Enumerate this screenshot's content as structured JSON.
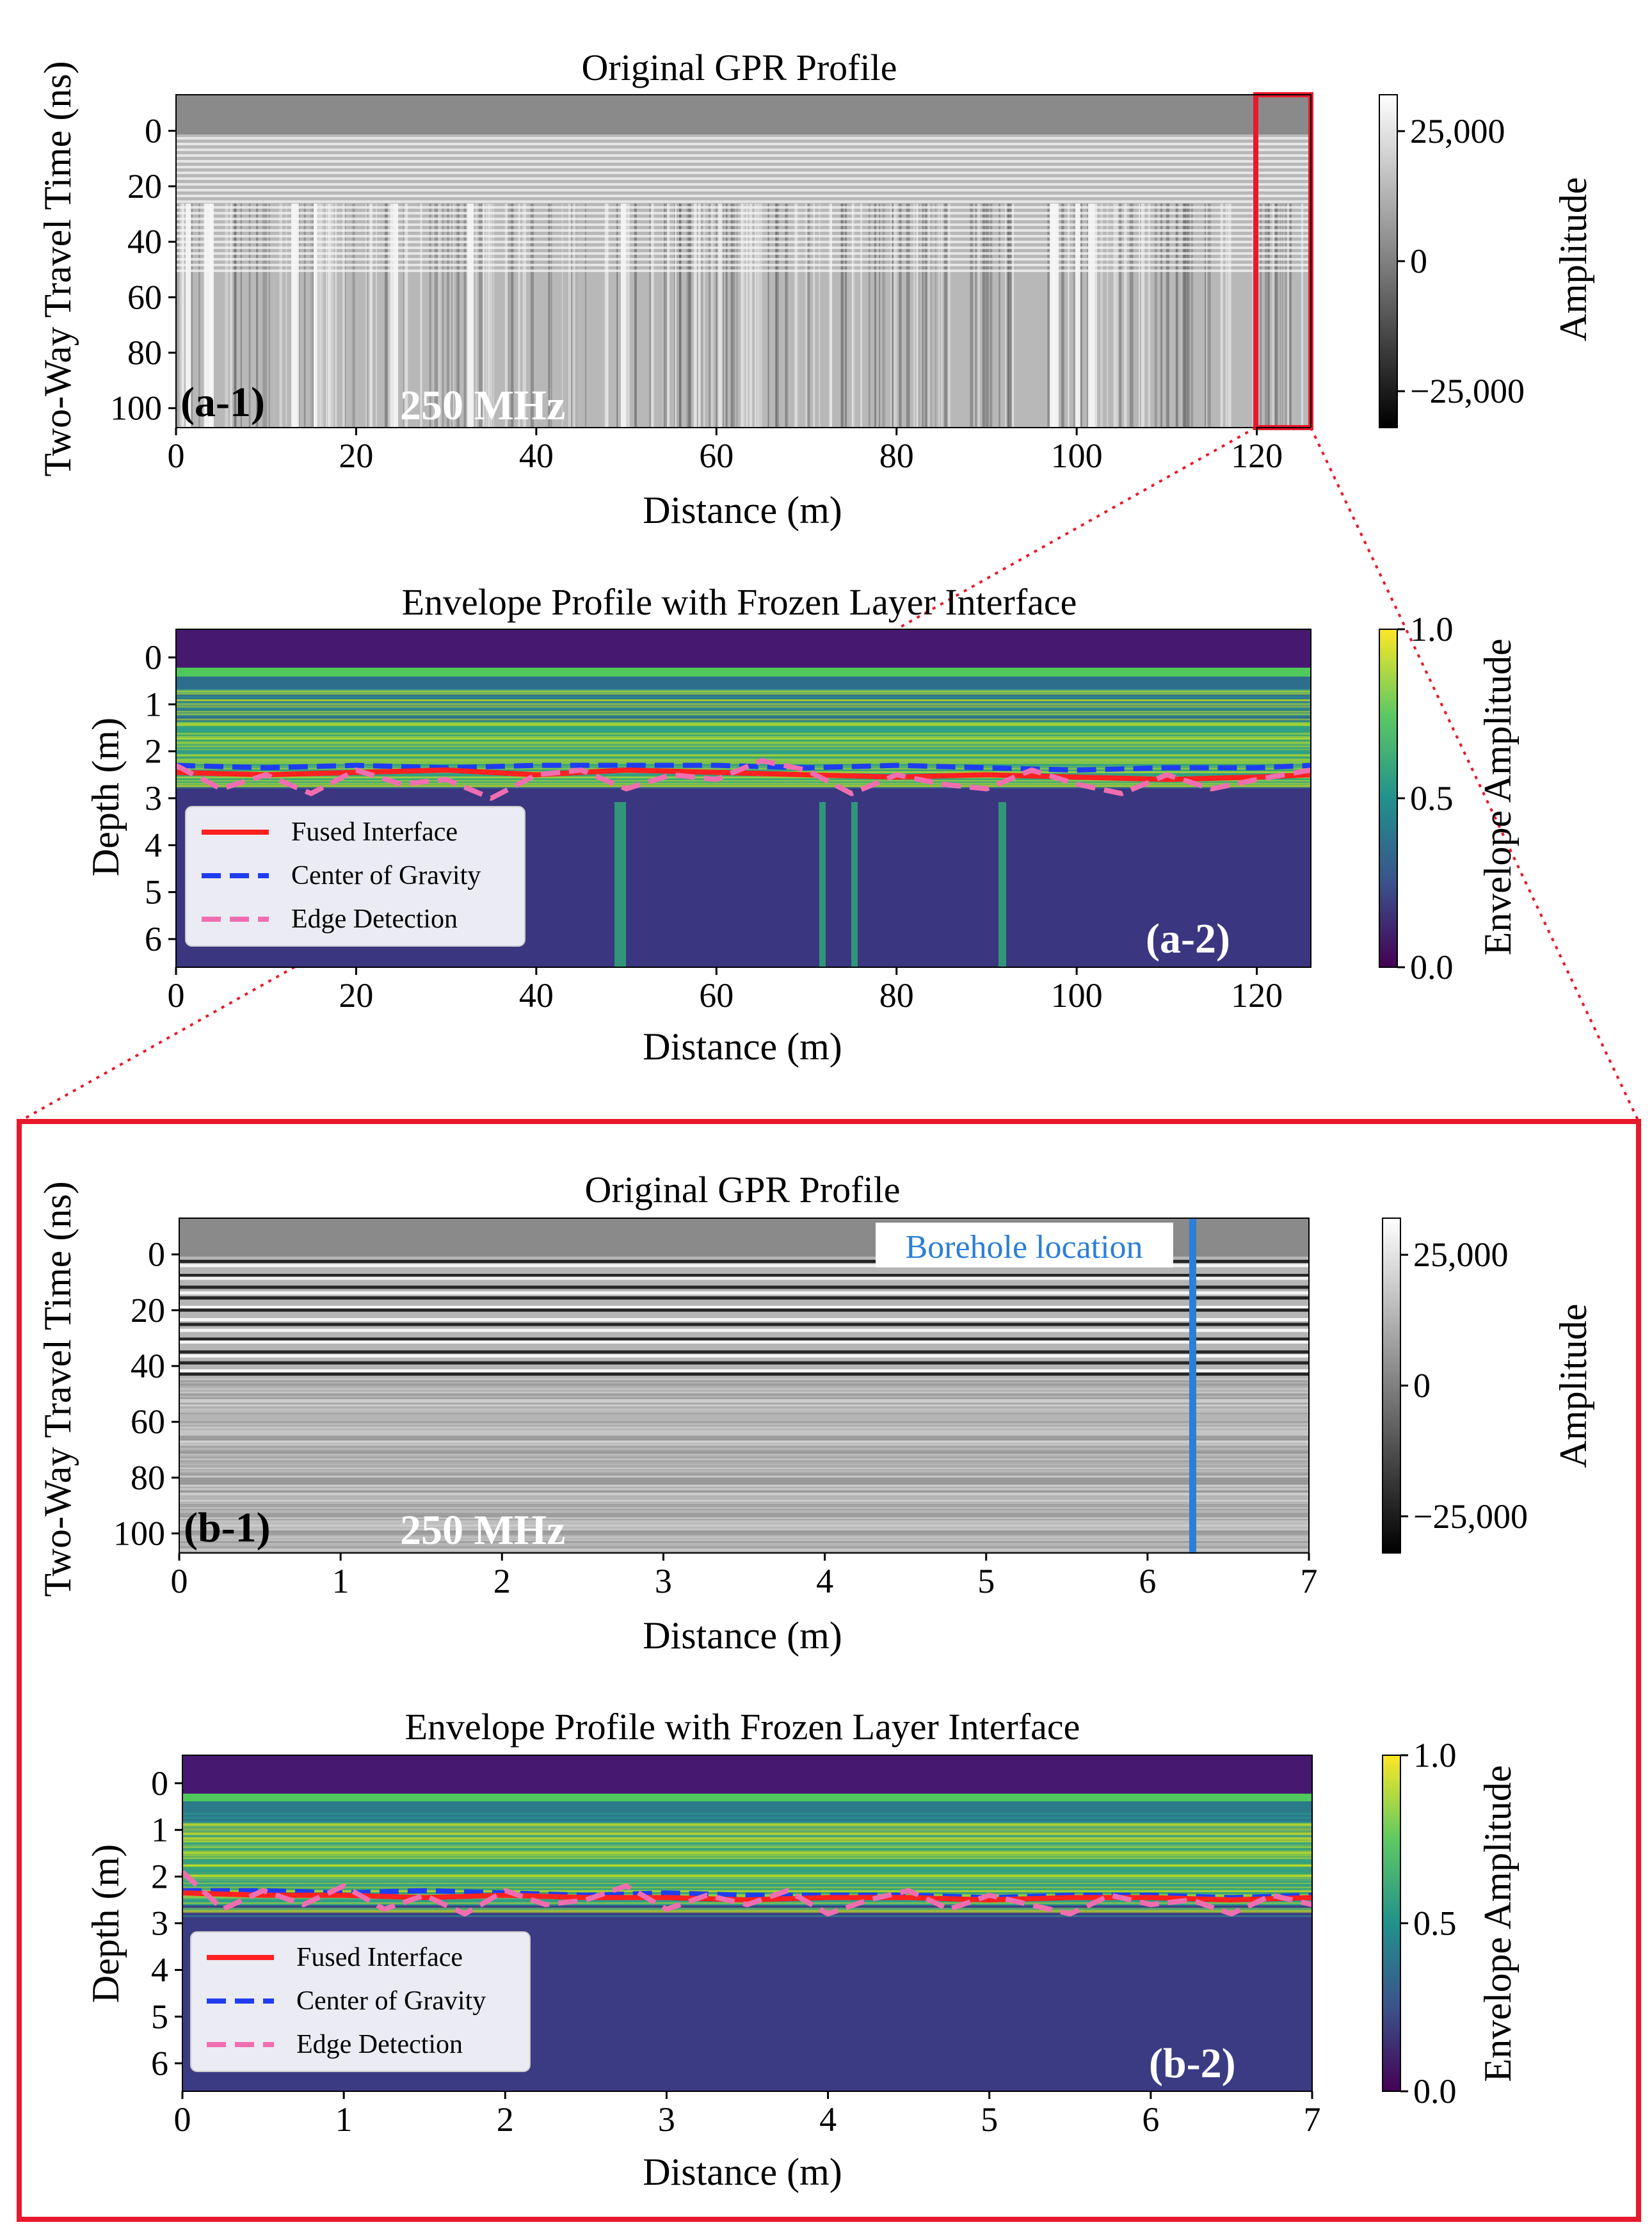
{
  "colors": {
    "frame": "#e8192c",
    "fused": "#ff2020",
    "cog": "#1f3df0",
    "edge": "#f06eb0",
    "borehole": "#2b7fd6"
  },
  "panels": {
    "a1": {
      "title": "Original GPR Profile",
      "ylabel": "Two-Way Travel Time (ns)",
      "xlabel": "Distance (m)",
      "tag": "(a-1)",
      "freq": "250 MHz",
      "cbar_label": "Amplitude"
    },
    "a2": {
      "title": "Envelope Profile with Frozen Layer Interface",
      "ylabel": "Depth (m)",
      "xlabel": "Distance (m)",
      "tag": "(a-2)",
      "cbar_label": "Envelope Amplitude"
    },
    "b1": {
      "title": "Original GPR Profile",
      "ylabel": "Two-Way Travel Time (ns)",
      "xlabel": "Distance (m)",
      "tag": "(b-1)",
      "freq": "250 MHz",
      "cbar_label": "Amplitude",
      "annotation": "Borehole location"
    },
    "b2": {
      "title": "Envelope Profile with Frozen Layer Interface",
      "ylabel": "Depth (m)",
      "xlabel": "Distance (m)",
      "tag": "(b-2)",
      "cbar_label": "Envelope Amplitude"
    }
  },
  "legend": [
    "Fused Interface",
    "Center of Gravity",
    "Edge Detection"
  ],
  "chart_data": [
    {
      "id": "a-1",
      "type": "heatmap",
      "title": "Original GPR Profile",
      "xlabel": "Distance (m)",
      "ylabel": "Two-Way Travel Time (ns)",
      "xlim": [
        0,
        126
      ],
      "ylim": [
        107,
        -13
      ],
      "xticks": [
        "0",
        "20",
        "40",
        "60",
        "80",
        "100",
        "120"
      ],
      "yticks": [
        "0",
        "20",
        "40",
        "60",
        "80",
        "100"
      ],
      "colorbar": {
        "label": "Amplitude",
        "cmap": "gray",
        "range": [
          -32000,
          32000
        ],
        "ticks": [
          "25,000",
          "0",
          "−25,000"
        ]
      },
      "annotations": [
        "(a-1)",
        "250 MHz"
      ],
      "highlight_box_x": [
        120.5,
        126
      ]
    },
    {
      "id": "a-2",
      "type": "heatmap",
      "title": "Envelope Profile with Frozen Layer Interface",
      "xlabel": "Distance (m)",
      "ylabel": "Depth (m)",
      "xlim": [
        0,
        126
      ],
      "ylim": [
        6.6,
        -0.6
      ],
      "xticks": [
        "0",
        "20",
        "40",
        "60",
        "80",
        "100",
        "120"
      ],
      "yticks": [
        "0",
        "1",
        "2",
        "3",
        "4",
        "5",
        "6"
      ],
      "colorbar": {
        "label": "Envelope Amplitude",
        "cmap": "viridis",
        "range": [
          0,
          1
        ],
        "ticks": [
          "1.0",
          "0.5",
          "0.0"
        ]
      },
      "series": [
        {
          "name": "Fused Interface",
          "x": [
            0,
            10,
            20,
            30,
            40,
            50,
            60,
            70,
            80,
            90,
            100,
            110,
            120,
            126
          ],
          "y": [
            2.45,
            2.5,
            2.45,
            2.4,
            2.5,
            2.4,
            2.45,
            2.5,
            2.55,
            2.5,
            2.55,
            2.6,
            2.55,
            2.5
          ]
        },
        {
          "name": "Center of Gravity",
          "x": [
            0,
            10,
            20,
            30,
            40,
            50,
            60,
            70,
            80,
            90,
            100,
            110,
            120,
            126
          ],
          "y": [
            2.3,
            2.35,
            2.3,
            2.35,
            2.3,
            2.3,
            2.3,
            2.35,
            2.3,
            2.35,
            2.4,
            2.35,
            2.35,
            2.3
          ]
        },
        {
          "name": "Edge Detection",
          "x": [
            0,
            5,
            10,
            15,
            20,
            25,
            30,
            35,
            40,
            45,
            50,
            55,
            60,
            65,
            70,
            75,
            80,
            85,
            90,
            95,
            100,
            105,
            110,
            115,
            120,
            126
          ],
          "y": [
            2.3,
            2.8,
            2.5,
            2.9,
            2.4,
            2.7,
            2.6,
            3.0,
            2.5,
            2.4,
            2.8,
            2.5,
            2.6,
            2.2,
            2.4,
            2.9,
            2.5,
            2.7,
            2.8,
            2.4,
            2.7,
            2.9,
            2.5,
            2.8,
            2.6,
            2.4
          ]
        }
      ],
      "annotations": [
        "(a-2)"
      ]
    },
    {
      "id": "b-1",
      "type": "heatmap",
      "title": "Original GPR Profile",
      "xlabel": "Distance (m)",
      "ylabel": "Two-Way Travel Time (ns)",
      "xlim": [
        0,
        7
      ],
      "ylim": [
        107,
        -13
      ],
      "xticks": [
        "0",
        "1",
        "2",
        "3",
        "4",
        "5",
        "6",
        "7"
      ],
      "yticks": [
        "0",
        "20",
        "40",
        "60",
        "80",
        "100"
      ],
      "colorbar": {
        "label": "Amplitude",
        "cmap": "gray",
        "range": [
          -32000,
          32000
        ],
        "ticks": [
          "25,000",
          "0",
          "−25,000"
        ]
      },
      "borehole_x": 6.28,
      "annotations": [
        "(b-1)",
        "250 MHz",
        "Borehole location"
      ]
    },
    {
      "id": "b-2",
      "type": "heatmap",
      "title": "Envelope Profile with Frozen Layer Interface",
      "xlabel": "Distance (m)",
      "ylabel": "Depth (m)",
      "xlim": [
        0,
        7
      ],
      "ylim": [
        6.6,
        -0.6
      ],
      "xticks": [
        "0",
        "1",
        "2",
        "3",
        "4",
        "5",
        "6",
        "7"
      ],
      "yticks": [
        "0",
        "1",
        "2",
        "3",
        "4",
        "5",
        "6"
      ],
      "colorbar": {
        "label": "Envelope Amplitude",
        "cmap": "viridis",
        "range": [
          0,
          1
        ],
        "ticks": [
          "1.0",
          "0.5",
          "0.0"
        ]
      },
      "series": [
        {
          "name": "Fused Interface",
          "x": [
            0,
            0.5,
            1,
            1.5,
            2,
            2.5,
            3,
            3.5,
            4,
            4.5,
            5,
            5.5,
            6,
            6.5,
            7
          ],
          "y": [
            2.35,
            2.4,
            2.4,
            2.45,
            2.4,
            2.45,
            2.45,
            2.5,
            2.45,
            2.45,
            2.5,
            2.45,
            2.45,
            2.5,
            2.45
          ]
        },
        {
          "name": "Center of Gravity",
          "x": [
            0,
            0.5,
            1,
            1.5,
            2,
            2.5,
            3,
            3.5,
            4,
            4.5,
            5,
            5.5,
            6,
            6.5,
            7
          ],
          "y": [
            2.3,
            2.3,
            2.35,
            2.3,
            2.35,
            2.4,
            2.35,
            2.4,
            2.4,
            2.4,
            2.45,
            2.4,
            2.4,
            2.45,
            2.4
          ]
        },
        {
          "name": "Edge Detection",
          "x": [
            0,
            0.25,
            0.5,
            0.75,
            1,
            1.25,
            1.5,
            1.75,
            2,
            2.25,
            2.5,
            2.75,
            3,
            3.25,
            3.5,
            3.75,
            4,
            4.25,
            4.5,
            4.75,
            5,
            5.25,
            5.5,
            5.75,
            6,
            6.25,
            6.5,
            6.75,
            7
          ],
          "y": [
            1.9,
            2.7,
            2.3,
            2.6,
            2.2,
            2.7,
            2.4,
            2.8,
            2.3,
            2.6,
            2.5,
            2.2,
            2.7,
            2.4,
            2.6,
            2.3,
            2.8,
            2.5,
            2.3,
            2.7,
            2.4,
            2.6,
            2.8,
            2.4,
            2.6,
            2.5,
            2.8,
            2.4,
            2.6
          ]
        }
      ],
      "annotations": [
        "(b-2)"
      ]
    }
  ]
}
